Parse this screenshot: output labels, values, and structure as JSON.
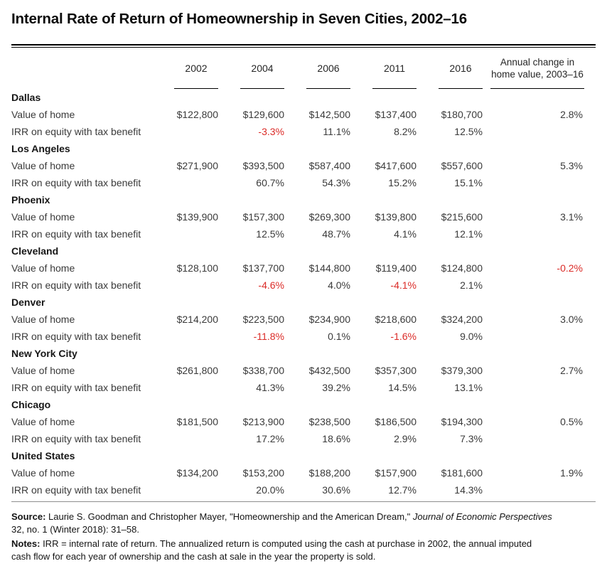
{
  "title": "Internal Rate of Return of Homeownership in Seven Cities, 2002–16",
  "colors": {
    "negative_value": "#db2b27",
    "rule": "#000000",
    "bottom_rule": "#8f8f8f"
  },
  "chart_data": {
    "type": "table",
    "title": "Internal Rate of Return of Homeownership in Seven Cities, 2002–16",
    "columns": [
      "2002",
      "2004",
      "2006",
      "2011",
      "2016",
      "Annual change in home value, 2003–16"
    ],
    "row_labels": [
      "Value of home",
      "IRR on equity with tax benefit"
    ],
    "sections": [
      {
        "city": "Dallas",
        "value_of_home": [
          "$122,800",
          "$129,600",
          "$142,500",
          "$137,400",
          "$180,700"
        ],
        "annual_change": "2.8%",
        "irr": [
          "",
          "-3.3%",
          "11.1%",
          "8.2%",
          "12.5%"
        ]
      },
      {
        "city": "Los Angeles",
        "value_of_home": [
          "$271,900",
          "$393,500",
          "$587,400",
          "$417,600",
          "$557,600"
        ],
        "annual_change": "5.3%",
        "irr": [
          "",
          "60.7%",
          "54.3%",
          "15.2%",
          "15.1%"
        ]
      },
      {
        "city": "Phoenix",
        "value_of_home": [
          "$139,900",
          "$157,300",
          "$269,300",
          "$139,800",
          "$215,600"
        ],
        "annual_change": "3.1%",
        "irr": [
          "",
          "12.5%",
          "48.7%",
          "4.1%",
          "12.1%"
        ]
      },
      {
        "city": "Cleveland",
        "value_of_home": [
          "$128,100",
          "$137,700",
          "$144,800",
          "$119,400",
          "$124,800"
        ],
        "annual_change": "-0.2%",
        "irr": [
          "",
          "-4.6%",
          "4.0%",
          "-4.1%",
          "2.1%"
        ]
      },
      {
        "city": "Denver",
        "value_of_home": [
          "$214,200",
          "$223,500",
          "$234,900",
          "$218,600",
          "$324,200"
        ],
        "annual_change": "3.0%",
        "irr": [
          "",
          "-11.8%",
          "0.1%",
          "-1.6%",
          "9.0%"
        ]
      },
      {
        "city": "New York City",
        "value_of_home": [
          "$261,800",
          "$338,700",
          "$432,500",
          "$357,300",
          "$379,300"
        ],
        "annual_change": "2.7%",
        "irr": [
          "",
          "41.3%",
          "39.2%",
          "14.5%",
          "13.1%"
        ]
      },
      {
        "city": "Chicago",
        "value_of_home": [
          "$181,500",
          "$213,900",
          "$238,500",
          "$186,500",
          "$194,300"
        ],
        "annual_change": "0.5%",
        "irr": [
          "",
          "17.2%",
          "18.6%",
          "2.9%",
          "7.3%"
        ]
      },
      {
        "city": "United States",
        "value_of_home": [
          "$134,200",
          "$153,200",
          "$188,200",
          "$157,900",
          "$181,600"
        ],
        "annual_change": "1.9%",
        "irr": [
          "",
          "20.0%",
          "30.6%",
          "12.7%",
          "14.3%"
        ]
      }
    ]
  },
  "footer": {
    "source_label": "Source:",
    "source_line1": " Laurie S. Goodman and Christopher Mayer, \"Homeownership and the American Dream,\" ",
    "source_journal": "Journal of Economic Perspectives",
    "source_line2": "32, no. 1 (Winter 2018): 31–58.",
    "notes_label": "Notes:",
    "notes_line1": " IRR = internal rate of return. The annualized return is computed using the cash at purchase in 2002, the annual imputed",
    "notes_line2": "cash flow for each year of ownership and the cash at sale in the year the property is sold."
  }
}
